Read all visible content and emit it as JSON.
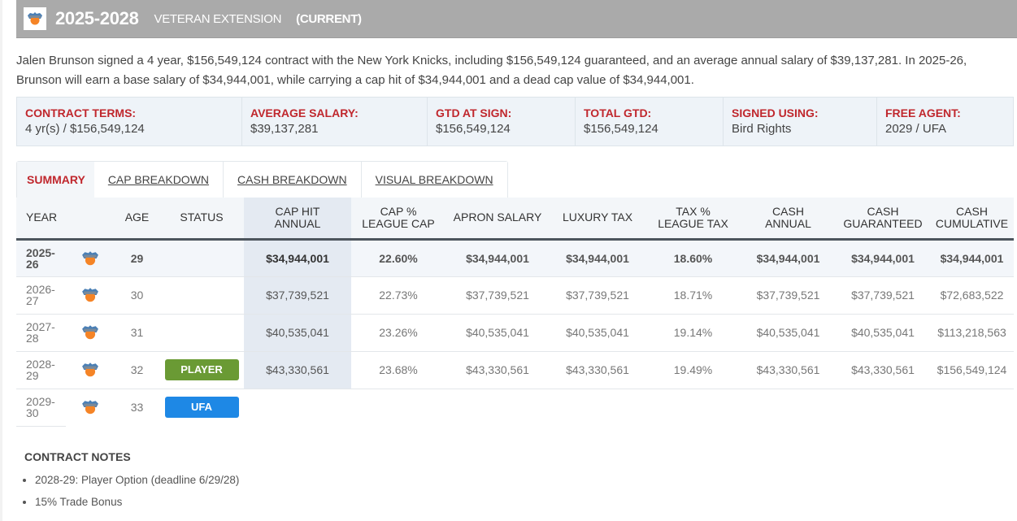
{
  "header": {
    "logo_icon": "knicks-logo-icon",
    "years": "2025-2028",
    "contract_type": "VETERAN EXTENSION",
    "status": "(CURRENT)"
  },
  "summary_text": "Jalen Brunson signed a 4 year, $156,549,124 contract with the New York Knicks, including $156,549,124 guaranteed, and an average annual salary of $39,137,281. In 2025-26, Brunson will earn a base salary of $34,944,001, while carrying a cap hit of $34,944,001 and a dead cap value of $34,944,001.",
  "terms": [
    {
      "label": "CONTRACT TERMS:",
      "value": "4 yr(s) / $156,549,124"
    },
    {
      "label": "AVERAGE SALARY:",
      "value": "$39,137,281"
    },
    {
      "label": "GTD AT SIGN:",
      "value": "$156,549,124"
    },
    {
      "label": "TOTAL GTD:",
      "value": "$156,549,124"
    },
    {
      "label": "SIGNED USING:",
      "value": "Bird Rights"
    },
    {
      "label": "FREE AGENT:",
      "value": "2029 / UFA"
    }
  ],
  "tabs": [
    {
      "label": "SUMMARY",
      "active": true
    },
    {
      "label": "CAP BREAKDOWN",
      "active": false
    },
    {
      "label": "CASH BREAKDOWN",
      "active": false
    },
    {
      "label": "VISUAL BREAKDOWN",
      "active": false
    }
  ],
  "table": {
    "headers": {
      "year": "YEAR",
      "age": "AGE",
      "status": "STATUS",
      "cap_hit_1": "CAP HIT",
      "cap_hit_2": "ANNUAL",
      "cap_pct_1": "CAP %",
      "cap_pct_2": "LEAGUE CAP",
      "apron": "APRON SALARY",
      "lux_tax": "LUXURY TAX",
      "tax_pct_1": "TAX %",
      "tax_pct_2": "LEAGUE TAX",
      "cash_annual_1": "CASH",
      "cash_annual_2": "ANNUAL",
      "cash_gtd_1": "CASH",
      "cash_gtd_2": "GUARANTEED",
      "cash_cum_1": "CASH",
      "cash_cum_2": "CUMULATIVE"
    },
    "rows": [
      {
        "year_a": "2025-",
        "year_b": "26",
        "age": "29",
        "status": "",
        "cap_hit": "$34,944,001",
        "cap_pct": "22.60%",
        "apron": "$34,944,001",
        "lux_tax": "$34,944,001",
        "tax_pct": "18.60%",
        "cash_annual": "$34,944,001",
        "cash_gtd": "$34,944,001",
        "cash_cum": "$34,944,001"
      },
      {
        "year_a": "2026-",
        "year_b": "27",
        "age": "30",
        "status": "",
        "cap_hit": "$37,739,521",
        "cap_pct": "22.73%",
        "apron": "$37,739,521",
        "lux_tax": "$37,739,521",
        "tax_pct": "18.71%",
        "cash_annual": "$37,739,521",
        "cash_gtd": "$37,739,521",
        "cash_cum": "$72,683,522"
      },
      {
        "year_a": "2027-",
        "year_b": "28",
        "age": "31",
        "status": "",
        "cap_hit": "$40,535,041",
        "cap_pct": "23.26%",
        "apron": "$40,535,041",
        "lux_tax": "$40,535,041",
        "tax_pct": "19.14%",
        "cash_annual": "$40,535,041",
        "cash_gtd": "$40,535,041",
        "cash_cum": "$113,218,563"
      },
      {
        "year_a": "2028-",
        "year_b": "29",
        "age": "32",
        "status": "PLAYER",
        "status_color": "#6a9a34",
        "cap_hit": "$43,330,561",
        "cap_pct": "23.68%",
        "apron": "$43,330,561",
        "lux_tax": "$43,330,561",
        "tax_pct": "19.49%",
        "cash_annual": "$43,330,561",
        "cash_gtd": "$43,330,561",
        "cash_cum": "$156,549,124"
      },
      {
        "year_a": "2029-",
        "year_b": "30",
        "age": "33",
        "status": "UFA",
        "status_color": "#1e88e5"
      }
    ]
  },
  "notes": {
    "title": "CONTRACT NOTES",
    "items": [
      "2028-29: Player Option (deadline 6/29/28)",
      "15% Trade Bonus"
    ]
  },
  "colors": {
    "accent_red": "#c0272d",
    "header_gray": "#aaaaaa",
    "player_option_green": "#6a9a34",
    "ufa_blue": "#1e88e5"
  }
}
